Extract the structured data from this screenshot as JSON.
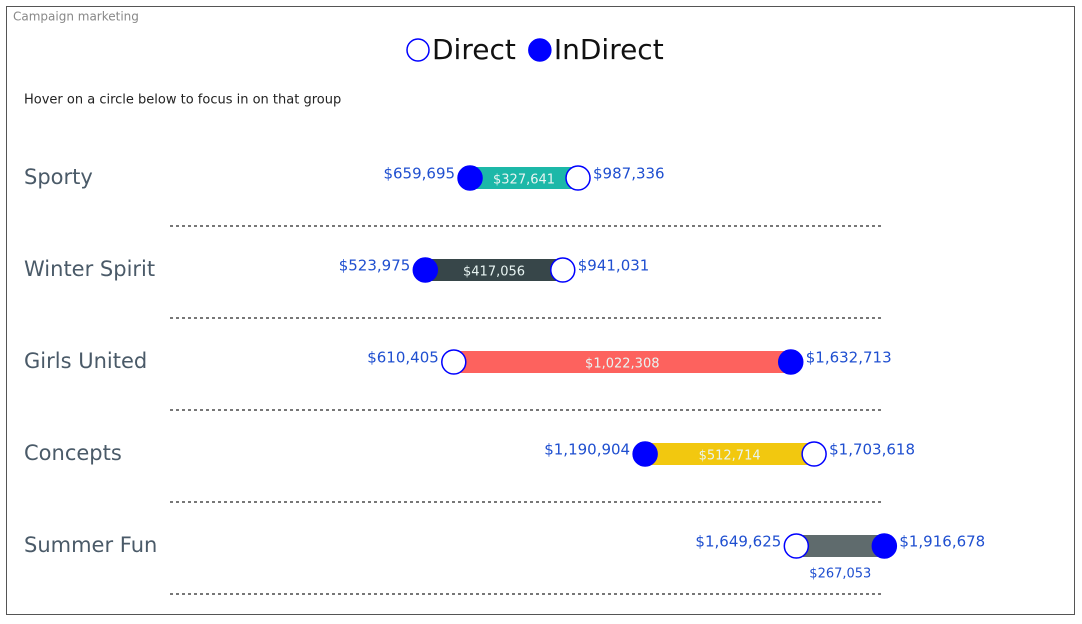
{
  "chart_data": {
    "type": "dumbbell",
    "title": "Campaign marketing",
    "subtitle": "Hover on a circle below to focus in on that group",
    "categories": [
      "Sporty",
      "Winter Spirit",
      "Girls United",
      "Concepts",
      "Summer Fun"
    ],
    "series": [
      {
        "name": "Direct",
        "color": "#0000ff",
        "filled": false,
        "values": [
          987336,
          941031,
          610405,
          1703618,
          1649625
        ],
        "value_labels": [
          "$987,336",
          "$941,031",
          "$610,405",
          "$1,703,618",
          "$1,649,625"
        ]
      },
      {
        "name": "InDirect",
        "color": "#0000ff",
        "filled": true,
        "values": [
          659695,
          523975,
          1632713,
          1190904,
          1916678
        ],
        "value_labels": [
          "$659,695",
          "$523,975",
          "$1,632,713",
          "$1,190,904",
          "$1,916,678"
        ]
      }
    ],
    "differences": {
      "values": [
        327641,
        417056,
        1022308,
        512714,
        267053
      ],
      "value_labels": [
        "$327,641",
        "$417,056",
        "$1,022,308",
        "$512,714",
        "$267,053"
      ],
      "colors": [
        "#1cb8a8",
        "#374649",
        "#fd625e",
        "#f2c80f",
        "#5f6b6d"
      ]
    }
  }
}
